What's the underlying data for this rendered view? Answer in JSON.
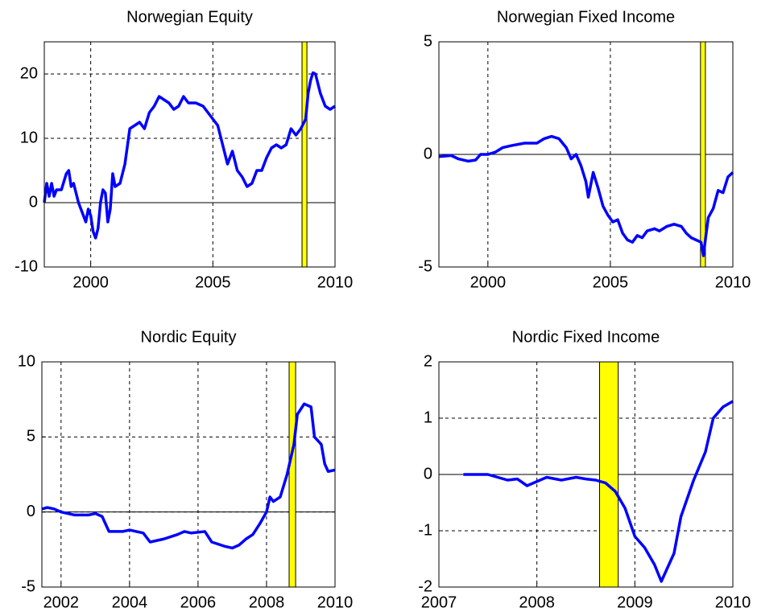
{
  "chart_data": [
    {
      "type": "line",
      "title": "Norwegian Equity",
      "color": "#0000ff",
      "band_color": "#ffff00",
      "grid": true,
      "xlim": [
        1998.1,
        2010
      ],
      "xticks": [
        2000,
        2005,
        2010
      ],
      "ylim": [
        -10,
        25
      ],
      "yticks": [
        -10,
        0,
        10,
        20
      ],
      "bands": [
        [
          2008.65,
          2008.85
        ]
      ],
      "x": [
        1998.1,
        1998.2,
        1998.3,
        1998.4,
        1998.5,
        1998.6,
        1998.8,
        1999.0,
        1999.1,
        1999.2,
        1999.3,
        1999.5,
        1999.7,
        1999.8,
        1999.9,
        2000.0,
        2000.1,
        2000.2,
        2000.3,
        2000.4,
        2000.5,
        2000.6,
        2000.7,
        2000.8,
        2000.9,
        2001.0,
        2001.2,
        2001.4,
        2001.6,
        2001.8,
        2002.0,
        2002.2,
        2002.4,
        2002.6,
        2002.8,
        2003.0,
        2003.2,
        2003.4,
        2003.6,
        2003.8,
        2004.0,
        2004.3,
        2004.6,
        2004.8,
        2005.0,
        2005.2,
        2005.4,
        2005.6,
        2005.8,
        2006.0,
        2006.2,
        2006.4,
        2006.6,
        2006.8,
        2007.0,
        2007.2,
        2007.4,
        2007.6,
        2007.8,
        2008.0,
        2008.2,
        2008.4,
        2008.6,
        2008.8,
        2008.9,
        2009.0,
        2009.1,
        2009.2,
        2009.4,
        2009.6,
        2009.8,
        2010.0
      ],
      "values": [
        0,
        3,
        1,
        3,
        1,
        2,
        2,
        4.5,
        5,
        2.5,
        3,
        0,
        -2,
        -3,
        -1,
        -2,
        -4.5,
        -5.5,
        -4,
        0,
        2,
        1.5,
        -3,
        -1,
        4.5,
        2.5,
        3,
        6,
        11.5,
        12,
        12.5,
        11.5,
        14,
        15,
        16.5,
        16,
        15.5,
        14.5,
        15,
        16.5,
        15.5,
        15.5,
        15,
        14,
        13,
        12,
        9,
        6,
        8,
        5,
        4,
        2.5,
        3,
        5,
        5,
        7,
        8.5,
        9,
        8.5,
        9,
        11.5,
        10.5,
        11.5,
        13,
        17,
        19,
        20.2,
        20,
        17,
        15,
        14.5,
        15
      ]
    },
    {
      "type": "line",
      "title": "Norwegian Fixed Income",
      "color": "#0000ff",
      "band_color": "#ffff00",
      "grid": true,
      "xlim": [
        1998.0,
        2010
      ],
      "xticks": [
        2000,
        2005,
        2010
      ],
      "ylim": [
        -5,
        5
      ],
      "yticks": [
        -5,
        0,
        5
      ],
      "bands": [
        [
          2008.68,
          2008.88
        ]
      ],
      "x": [
        1998.0,
        1998.5,
        1998.8,
        1999.2,
        1999.5,
        1999.7,
        2000.0,
        2000.3,
        2000.6,
        2001.0,
        2001.5,
        2002.0,
        2002.3,
        2002.6,
        2002.9,
        2003.2,
        2003.4,
        2003.6,
        2003.8,
        2004.0,
        2004.1,
        2004.3,
        2004.5,
        2004.7,
        2004.9,
        2005.1,
        2005.3,
        2005.5,
        2005.7,
        2005.9,
        2006.1,
        2006.3,
        2006.5,
        2006.8,
        2007.0,
        2007.3,
        2007.6,
        2007.9,
        2008.1,
        2008.3,
        2008.5,
        2008.7,
        2008.8,
        2008.9,
        2009.0,
        2009.2,
        2009.4,
        2009.6,
        2009.8,
        2010.0
      ],
      "values": [
        -0.1,
        -0.05,
        -0.2,
        -0.3,
        -0.25,
        0,
        0,
        0.1,
        0.3,
        0.4,
        0.5,
        0.5,
        0.7,
        0.8,
        0.7,
        0.3,
        -0.2,
        0,
        -0.5,
        -1.2,
        -1.9,
        -0.8,
        -1.5,
        -2.3,
        -2.7,
        -3.0,
        -2.9,
        -3.5,
        -3.8,
        -3.9,
        -3.6,
        -3.7,
        -3.4,
        -3.3,
        -3.4,
        -3.2,
        -3.1,
        -3.2,
        -3.5,
        -3.7,
        -3.8,
        -3.9,
        -4.5,
        -3.6,
        -2.8,
        -2.4,
        -1.6,
        -1.7,
        -1.0,
        -0.8
      ]
    },
    {
      "type": "line",
      "title": "Nordic Equity",
      "color": "#0000ff",
      "band_color": "#ffff00",
      "grid": true,
      "xlim": [
        2001.44,
        2010
      ],
      "xticks": [
        2002,
        2004,
        2006,
        2008,
        2010
      ],
      "ylim": [
        -5,
        10
      ],
      "yticks": [
        -5,
        0,
        5,
        10
      ],
      "bands": [
        [
          2008.66,
          2008.85
        ]
      ],
      "x": [
        2001.44,
        2001.6,
        2001.8,
        2002.0,
        2002.4,
        2002.8,
        2003.0,
        2003.2,
        2003.4,
        2003.8,
        2004.0,
        2004.4,
        2004.6,
        2005.0,
        2005.4,
        2005.6,
        2005.8,
        2006.2,
        2006.4,
        2006.8,
        2007.0,
        2007.2,
        2007.4,
        2007.6,
        2007.8,
        2008.0,
        2008.1,
        2008.2,
        2008.4,
        2008.6,
        2008.8,
        2008.9,
        2009.1,
        2009.3,
        2009.4,
        2009.6,
        2009.7,
        2009.8,
        2010.0
      ],
      "values": [
        0.2,
        0.3,
        0.2,
        0,
        -0.2,
        -0.2,
        -0.1,
        -0.3,
        -1.3,
        -1.3,
        -1.2,
        -1.4,
        -2.0,
        -1.8,
        -1.5,
        -1.3,
        -1.4,
        -1.3,
        -2.0,
        -2.3,
        -2.4,
        -2.2,
        -1.8,
        -1.5,
        -0.8,
        0,
        1.0,
        0.7,
        1.0,
        2.5,
        4.5,
        6.5,
        7.2,
        7.0,
        5.0,
        4.5,
        3.2,
        2.7,
        2.8
      ]
    },
    {
      "type": "line",
      "title": "Nordic Fixed Income",
      "color": "#0000ff",
      "band_color": "#ffff00",
      "grid": true,
      "xlim": [
        2007,
        2010
      ],
      "xticks": [
        2007,
        2008,
        2009,
        2010
      ],
      "ylim": [
        -2,
        2
      ],
      "yticks": [
        -2,
        -1,
        0,
        1,
        2
      ],
      "bands": [
        [
          2008.64,
          2008.83
        ]
      ],
      "x": [
        2007.25,
        2007.5,
        2007.7,
        2007.8,
        2007.9,
        2008.1,
        2008.25,
        2008.4,
        2008.5,
        2008.6,
        2008.7,
        2008.8,
        2008.9,
        2009.0,
        2009.1,
        2009.2,
        2009.27,
        2009.4,
        2009.47,
        2009.6,
        2009.72,
        2009.8,
        2009.9,
        2010.0
      ],
      "values": [
        0,
        0,
        -0.1,
        -0.08,
        -0.2,
        -0.05,
        -0.1,
        -0.05,
        -0.08,
        -0.1,
        -0.15,
        -0.3,
        -0.6,
        -1.1,
        -1.3,
        -1.6,
        -1.9,
        -1.4,
        -0.75,
        -0.1,
        0.4,
        1.0,
        1.2,
        1.3
      ]
    }
  ]
}
